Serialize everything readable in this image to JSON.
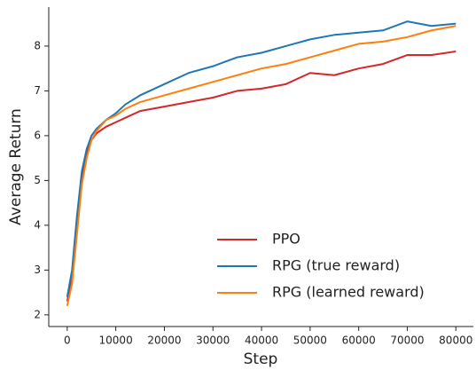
{
  "chart_data": {
    "type": "line",
    "x": [
      0,
      1000,
      2000,
      3000,
      4000,
      5000,
      6000,
      8000,
      10000,
      12000,
      15000,
      20000,
      25000,
      30000,
      35000,
      40000,
      45000,
      50000,
      55000,
      60000,
      65000,
      70000,
      75000,
      80000
    ],
    "series": [
      {
        "name": "PPO",
        "color": "#d62728",
        "values": [
          2.3,
          2.9,
          4.0,
          5.0,
          5.6,
          5.9,
          6.05,
          6.2,
          6.3,
          6.4,
          6.55,
          6.65,
          6.75,
          6.85,
          7.0,
          7.05,
          7.15,
          7.4,
          7.35,
          7.5,
          7.6,
          7.8,
          7.8,
          7.88
        ]
      },
      {
        "name": "RPG (true reward)",
        "color": "#1f77b4",
        "values": [
          2.4,
          3.0,
          4.2,
          5.2,
          5.7,
          6.0,
          6.15,
          6.35,
          6.5,
          6.7,
          6.9,
          7.15,
          7.4,
          7.55,
          7.75,
          7.85,
          8.0,
          8.15,
          8.25,
          8.3,
          8.35,
          8.55,
          8.45,
          8.5
        ]
      },
      {
        "name": "RPG (learned reward)",
        "color": "#ff7f0e",
        "values": [
          2.2,
          2.7,
          3.8,
          4.9,
          5.5,
          5.9,
          6.1,
          6.35,
          6.45,
          6.6,
          6.75,
          6.9,
          7.05,
          7.2,
          7.35,
          7.5,
          7.6,
          7.75,
          7.9,
          8.05,
          8.1,
          8.2,
          8.35,
          8.45
        ]
      }
    ],
    "x_label": "Step",
    "y_label": "Average Return",
    "xlim": [
      -3800,
      83600
    ],
    "ylim": [
      1.74,
      8.87
    ],
    "xticks": [
      0,
      10000,
      20000,
      30000,
      40000,
      50000,
      60000,
      70000,
      80000
    ],
    "yticks": [
      2,
      3,
      4,
      5,
      6,
      7,
      8
    ],
    "legend": "lower right",
    "grid": false
  }
}
